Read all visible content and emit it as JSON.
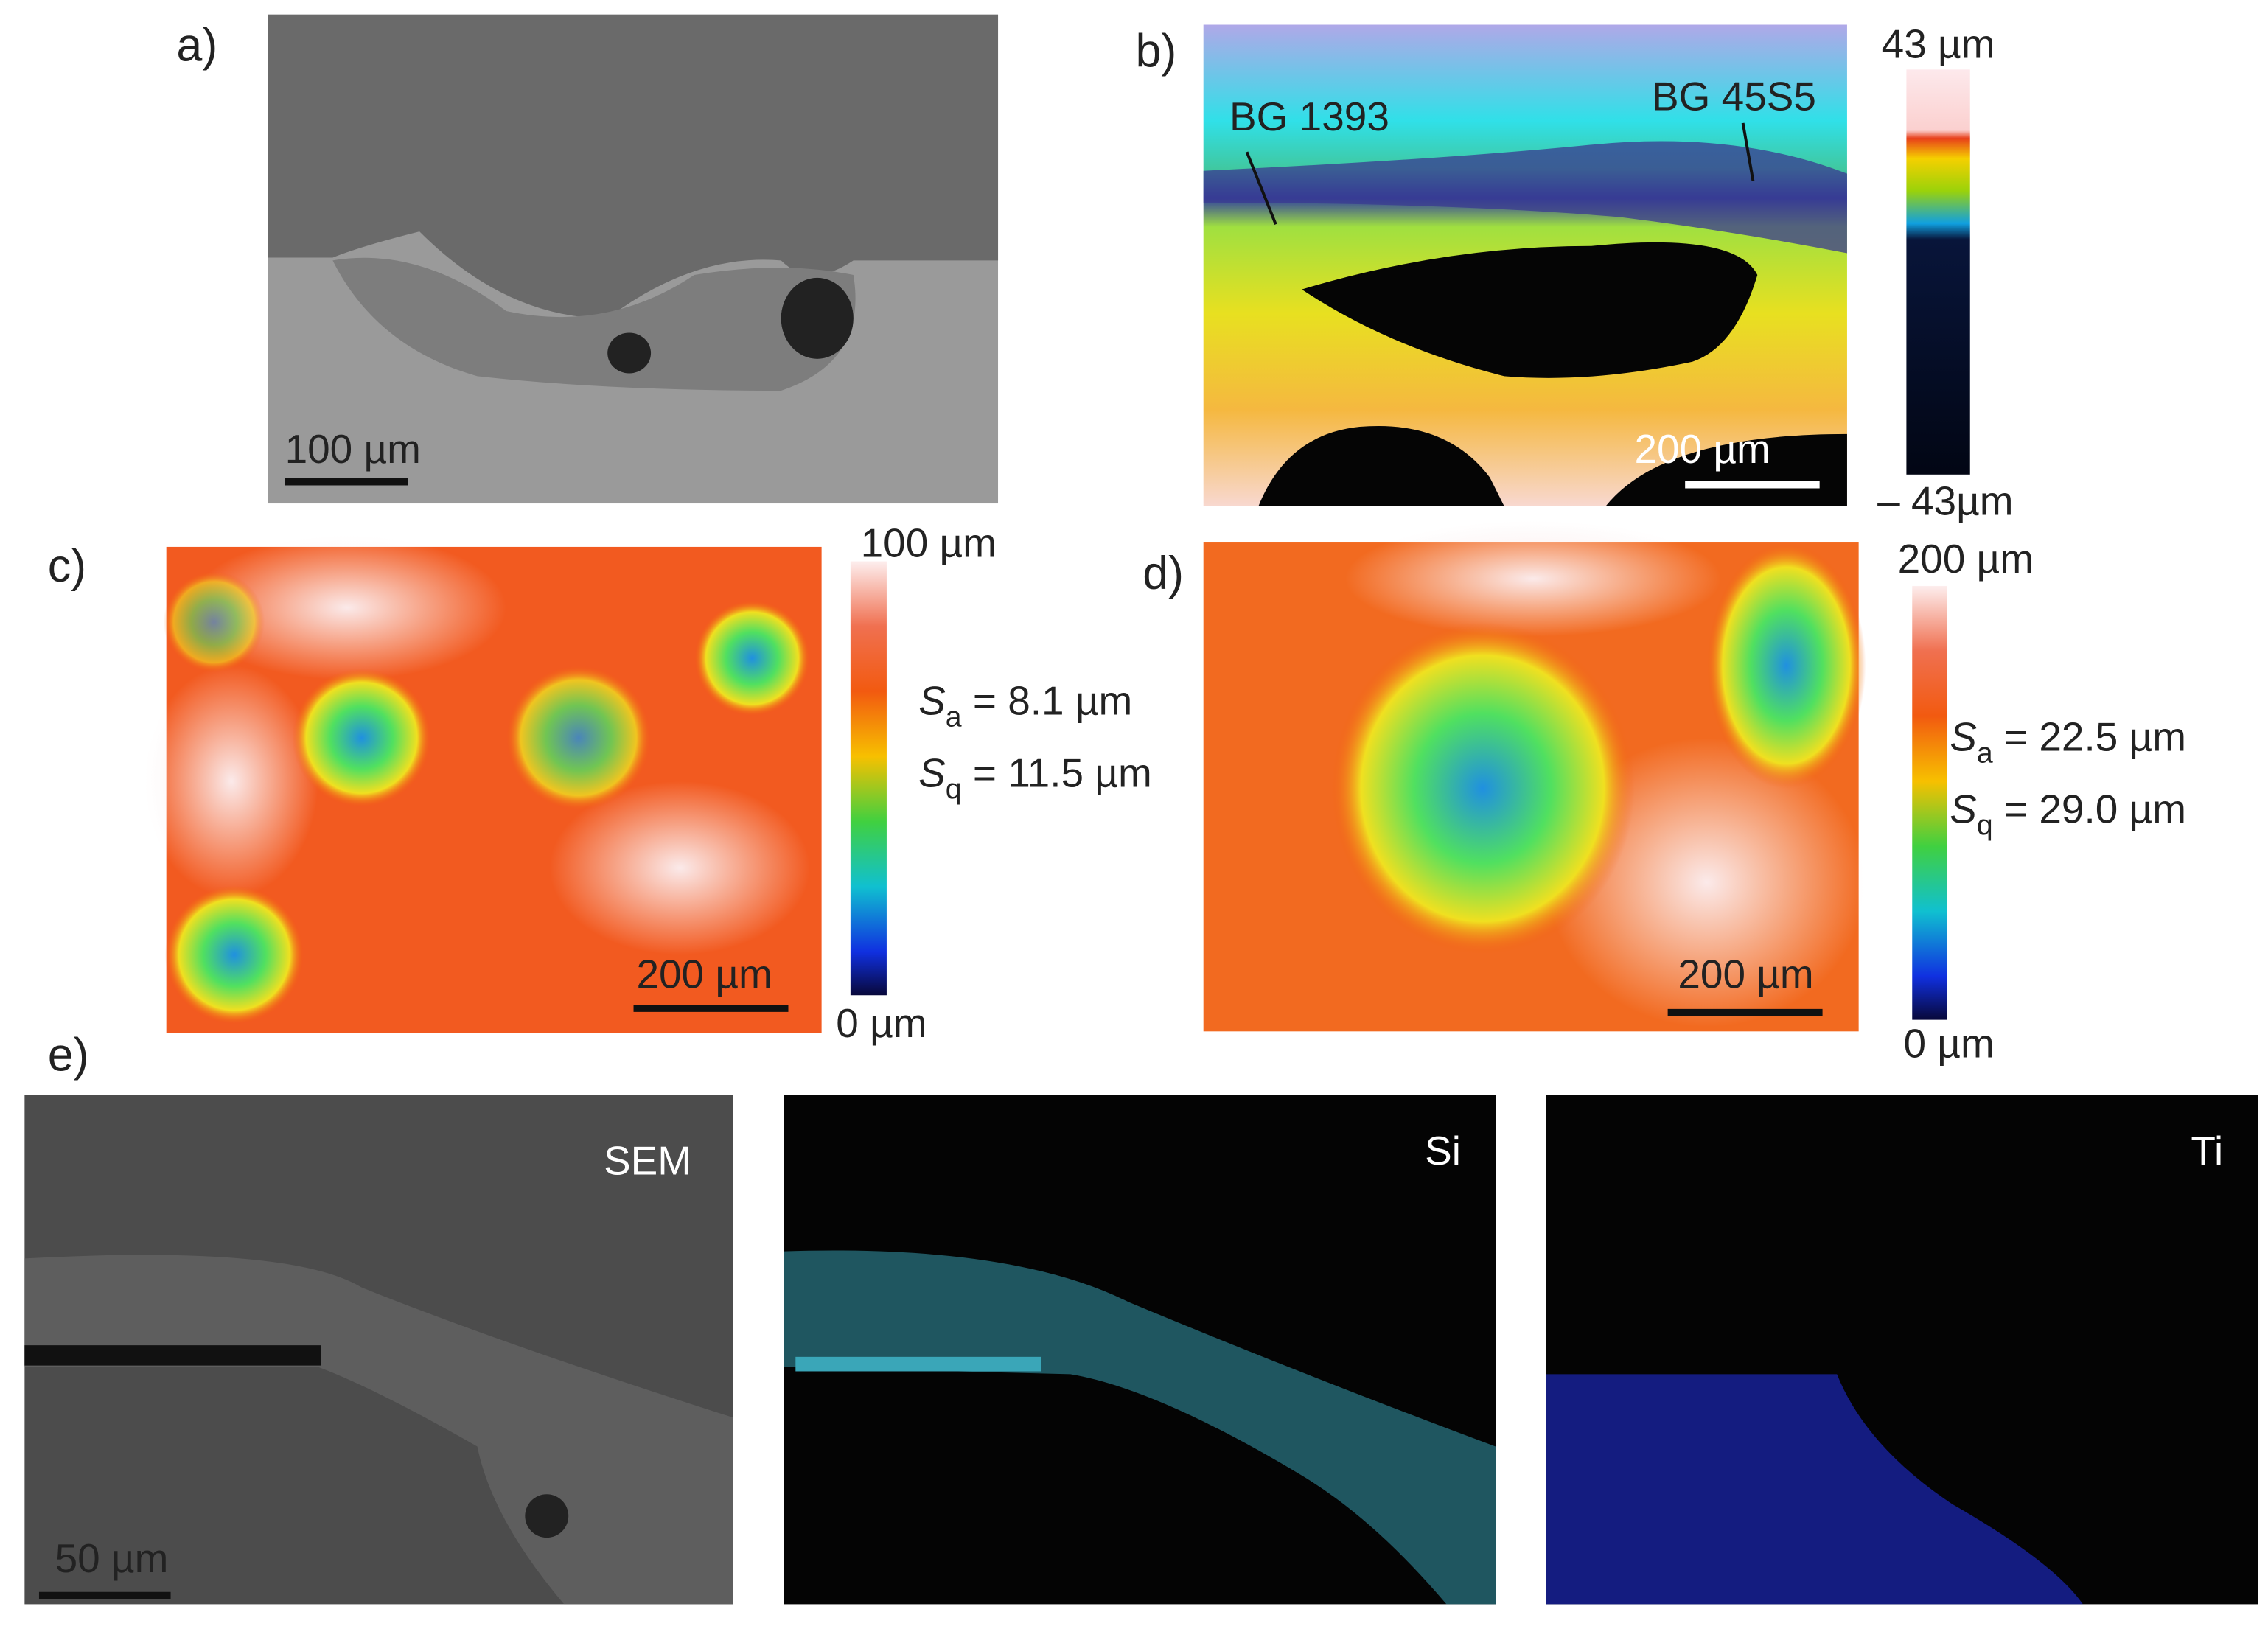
{
  "panels": [
    {
      "label": "a)",
      "scale_bar": "100 µm"
    },
    {
      "label": "b)",
      "scale_bar": "200 µm",
      "annotations": [
        "BG 1393",
        "BG 45S5"
      ],
      "colorbar": {
        "max": "43 µm",
        "min": "– 43µm"
      }
    },
    {
      "label": "c)",
      "scale_bar": "200 µm",
      "colorbar": {
        "max": "100 µm",
        "min": "0 µm"
      },
      "roughness": [
        {
          "symbol": "S",
          "subscript": "a",
          "text": " = 8.1 µm"
        },
        {
          "symbol": "S",
          "subscript": "q",
          "text": " = 11.5 µm"
        }
      ]
    },
    {
      "label": "d)",
      "scale_bar": "200 µm",
      "colorbar": {
        "max": "200 µm",
        "min": "0 µm"
      },
      "roughness": [
        {
          "symbol": "S",
          "subscript": "a",
          "text": " = 22.5 µm"
        },
        {
          "symbol": "S",
          "subscript": "q",
          "text": " = 29.0 µm"
        }
      ]
    },
    {
      "label": "e)",
      "scale_bar": "50 µm",
      "maps": [
        "SEM",
        "Si",
        "Ti"
      ]
    }
  ]
}
